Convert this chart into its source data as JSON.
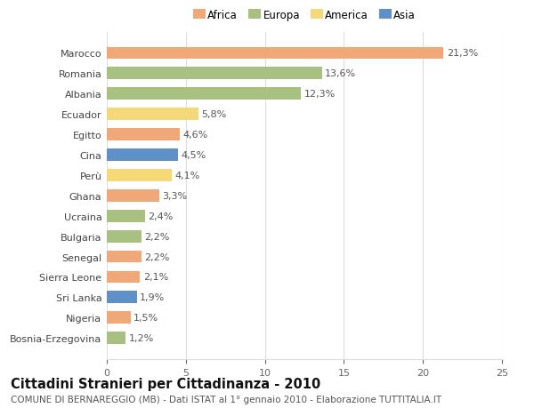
{
  "categories": [
    "Marocco",
    "Romania",
    "Albania",
    "Ecuador",
    "Egitto",
    "Cina",
    "Perù",
    "Ghana",
    "Ucraina",
    "Bulgaria",
    "Senegal",
    "Sierra Leone",
    "Sri Lanka",
    "Nigeria",
    "Bosnia-Erzegovina"
  ],
  "values": [
    21.3,
    13.6,
    12.3,
    5.8,
    4.6,
    4.5,
    4.1,
    3.3,
    2.4,
    2.2,
    2.2,
    2.1,
    1.9,
    1.5,
    1.2
  ],
  "labels": [
    "21,3%",
    "13,6%",
    "12,3%",
    "5,8%",
    "4,6%",
    "4,5%",
    "4,1%",
    "3,3%",
    "2,4%",
    "2,2%",
    "2,2%",
    "2,1%",
    "1,9%",
    "1,5%",
    "1,2%"
  ],
  "colors": [
    "#F0A878",
    "#A8C080",
    "#A8C080",
    "#F5D878",
    "#F0A878",
    "#6090C8",
    "#F5D878",
    "#F0A878",
    "#A8C080",
    "#A8C080",
    "#F0A878",
    "#F0A878",
    "#6090C8",
    "#F0A878",
    "#A8C080"
  ],
  "continent_colors": {
    "Africa": "#F0A878",
    "Europa": "#A8C080",
    "America": "#F5D878",
    "Asia": "#6090C8"
  },
  "legend_labels": [
    "Africa",
    "Europa",
    "America",
    "Asia"
  ],
  "title": "Cittadini Stranieri per Cittadinanza - 2010",
  "subtitle": "COMUNE DI BERNAREGGIO (MB) - Dati ISTAT al 1° gennaio 2010 - Elaborazione TUTTITALIA.IT",
  "xlim": [
    0,
    25
  ],
  "xticks": [
    0,
    5,
    10,
    15,
    20,
    25
  ],
  "bg_color": "#FFFFFF",
  "grid_color": "#DDDDDD",
  "bar_height": 0.6,
  "title_fontsize": 10.5,
  "subtitle_fontsize": 7.5,
  "label_fontsize": 8,
  "tick_fontsize": 8,
  "legend_fontsize": 8.5
}
